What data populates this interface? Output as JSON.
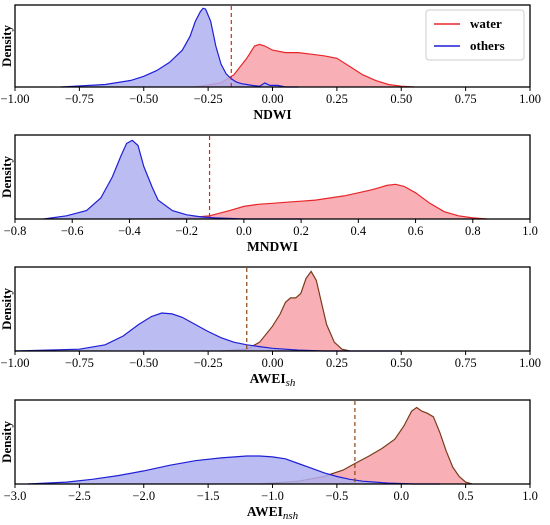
{
  "chart_data": [
    {
      "type": "area",
      "xlabel": "NDWI",
      "xlabel_sub": "",
      "ylabel": "Density",
      "xlim": [
        -1.0,
        1.0
      ],
      "xticks": [
        "-1.00",
        "-0.75",
        "-0.50",
        "-0.25",
        "0.00",
        "0.25",
        "0.50",
        "0.75",
        "1.00"
      ],
      "threshold": -0.16,
      "threshold_color": "#d62728",
      "legend": {
        "position": "top-right",
        "entries": [
          "water",
          "others"
        ]
      },
      "series": [
        {
          "name": "water",
          "color": "#e8262a",
          "fill": "#f7a1a8",
          "x": [
            -0.3,
            -0.2,
            -0.15,
            -0.1,
            -0.07,
            -0.05,
            -0.03,
            0.0,
            0.05,
            0.1,
            0.15,
            0.2,
            0.25,
            0.3,
            0.35,
            0.4,
            0.45,
            0.5,
            0.55
          ],
          "y": [
            0.0,
            0.05,
            0.15,
            0.35,
            0.5,
            0.52,
            0.5,
            0.45,
            0.42,
            0.42,
            0.4,
            0.38,
            0.35,
            0.25,
            0.15,
            0.08,
            0.03,
            0.01,
            0.0
          ]
        },
        {
          "name": "others",
          "color": "#1f1fd6",
          "fill": "#aeb0f0",
          "x": [
            -0.82,
            -0.65,
            -0.55,
            -0.5,
            -0.45,
            -0.4,
            -0.35,
            -0.32,
            -0.3,
            -0.28,
            -0.27,
            -0.26,
            -0.24,
            -0.22,
            -0.2,
            -0.18,
            -0.16,
            -0.14,
            -0.12,
            -0.1,
            -0.08,
            -0.05,
            -0.03,
            -0.01,
            0.02,
            0.05,
            0.1
          ],
          "y": [
            0.0,
            0.03,
            0.08,
            0.13,
            0.2,
            0.3,
            0.45,
            0.62,
            0.8,
            0.92,
            0.96,
            0.95,
            0.8,
            0.5,
            0.28,
            0.16,
            0.1,
            0.06,
            0.04,
            0.03,
            0.02,
            0.01,
            0.05,
            0.02,
            0.02,
            0.0,
            0.0
          ]
        }
      ]
    },
    {
      "type": "area",
      "xlabel": "MNDWI",
      "xlabel_sub": "",
      "ylabel": "Density",
      "xlim": [
        -0.8,
        1.0
      ],
      "xticks": [
        "-0.8",
        "-0.6",
        "-0.4",
        "-0.2",
        "0.0",
        "0.2",
        "0.4",
        "0.6",
        "0.8",
        "1.0"
      ],
      "threshold": -0.12,
      "threshold_color": "#d62728",
      "series": [
        {
          "name": "water",
          "color": "#e8262a",
          "fill": "#f7a1a8",
          "x": [
            -0.4,
            -0.2,
            -0.12,
            -0.05,
            0.0,
            0.05,
            0.1,
            0.15,
            0.2,
            0.25,
            0.3,
            0.35,
            0.4,
            0.45,
            0.5,
            0.53,
            0.56,
            0.6,
            0.65,
            0.7,
            0.75,
            0.8,
            0.85
          ],
          "y": [
            0.0,
            0.01,
            0.03,
            0.08,
            0.12,
            0.14,
            0.15,
            0.16,
            0.17,
            0.18,
            0.2,
            0.22,
            0.25,
            0.28,
            0.32,
            0.33,
            0.31,
            0.25,
            0.15,
            0.07,
            0.03,
            0.01,
            0.0
          ]
        },
        {
          "name": "others",
          "color": "#1f1fd6",
          "fill": "#aeb0f0",
          "x": [
            -0.7,
            -0.62,
            -0.55,
            -0.5,
            -0.46,
            -0.43,
            -0.41,
            -0.39,
            -0.37,
            -0.35,
            -0.32,
            -0.3,
            -0.25,
            -0.2,
            -0.15,
            -0.1,
            0.0,
            0.1,
            0.2
          ],
          "y": [
            0.0,
            0.03,
            0.08,
            0.2,
            0.4,
            0.6,
            0.72,
            0.75,
            0.7,
            0.5,
            0.3,
            0.18,
            0.08,
            0.04,
            0.02,
            0.01,
            0.0,
            0.0,
            0.0
          ]
        }
      ]
    },
    {
      "type": "area",
      "xlabel": "AWEI",
      "xlabel_sub": "sh",
      "ylabel": "Density",
      "xlim": [
        -1.0,
        1.0
      ],
      "xticks": [
        "-1.00",
        "-0.75",
        "-0.50",
        "-0.25",
        "0.00",
        "0.25",
        "0.50",
        "0.75",
        "1.00"
      ],
      "threshold": -0.1,
      "threshold_color": "#8b4513",
      "series": [
        {
          "name": "water",
          "color": "#7a3b1a",
          "fill": "#f7a1a8",
          "x": [
            -0.2,
            -0.1,
            -0.05,
            0.0,
            0.03,
            0.05,
            0.07,
            0.09,
            0.11,
            0.13,
            0.15,
            0.17,
            0.19,
            0.21,
            0.24,
            0.27,
            0.3
          ],
          "y": [
            0.0,
            0.02,
            0.1,
            0.28,
            0.42,
            0.55,
            0.6,
            0.6,
            0.65,
            0.82,
            0.9,
            0.8,
            0.55,
            0.3,
            0.1,
            0.02,
            0.0
          ]
        },
        {
          "name": "others",
          "color": "#1f1fd6",
          "fill": "#aeb0f0",
          "x": [
            -1.0,
            -0.75,
            -0.65,
            -0.58,
            -0.52,
            -0.47,
            -0.43,
            -0.39,
            -0.35,
            -0.3,
            -0.25,
            -0.2,
            -0.15,
            -0.1,
            -0.05,
            0.0,
            0.05,
            0.1,
            0.2,
            0.3,
            0.5
          ],
          "y": [
            0.0,
            0.02,
            0.07,
            0.17,
            0.3,
            0.39,
            0.43,
            0.42,
            0.38,
            0.3,
            0.22,
            0.15,
            0.1,
            0.07,
            0.05,
            0.03,
            0.02,
            0.01,
            0.0,
            0.0,
            0.0
          ]
        }
      ]
    },
    {
      "type": "area",
      "xlabel": "AWEI",
      "xlabel_sub": "nsh",
      "ylabel": "Density",
      "xlim": [
        -3.0,
        1.0
      ],
      "xticks": [
        "-3.0",
        "-2.5",
        "-2.0",
        "-1.5",
        "-1.0",
        "-0.5",
        "0.0",
        "0.5",
        "1.0"
      ],
      "threshold": -0.36,
      "threshold_color": "#8b4513",
      "series": [
        {
          "name": "water",
          "color": "#7a3b1a",
          "fill": "#f7a1a8",
          "x": [
            -1.1,
            -0.8,
            -0.6,
            -0.45,
            -0.36,
            -0.25,
            -0.15,
            -0.05,
            0.02,
            0.08,
            0.12,
            0.16,
            0.2,
            0.25,
            0.3,
            0.35,
            0.4,
            0.45,
            0.5,
            0.55
          ],
          "y": [
            0.0,
            0.03,
            0.08,
            0.15,
            0.22,
            0.3,
            0.38,
            0.48,
            0.62,
            0.78,
            0.82,
            0.78,
            0.76,
            0.72,
            0.55,
            0.35,
            0.18,
            0.08,
            0.02,
            0.0
          ]
        },
        {
          "name": "others",
          "color": "#1f1fd6",
          "fill": "#aeb0f0",
          "x": [
            -2.9,
            -2.6,
            -2.4,
            -2.2,
            -2.0,
            -1.8,
            -1.6,
            -1.4,
            -1.2,
            -1.1,
            -1.0,
            -0.9,
            -0.8,
            -0.7,
            -0.6,
            -0.5,
            -0.4,
            -0.3,
            -0.1,
            0.1,
            0.3
          ],
          "y": [
            0.0,
            0.02,
            0.05,
            0.09,
            0.14,
            0.2,
            0.25,
            0.28,
            0.3,
            0.3,
            0.29,
            0.27,
            0.22,
            0.17,
            0.12,
            0.08,
            0.05,
            0.03,
            0.01,
            0.0,
            0.0
          ]
        }
      ]
    }
  ]
}
